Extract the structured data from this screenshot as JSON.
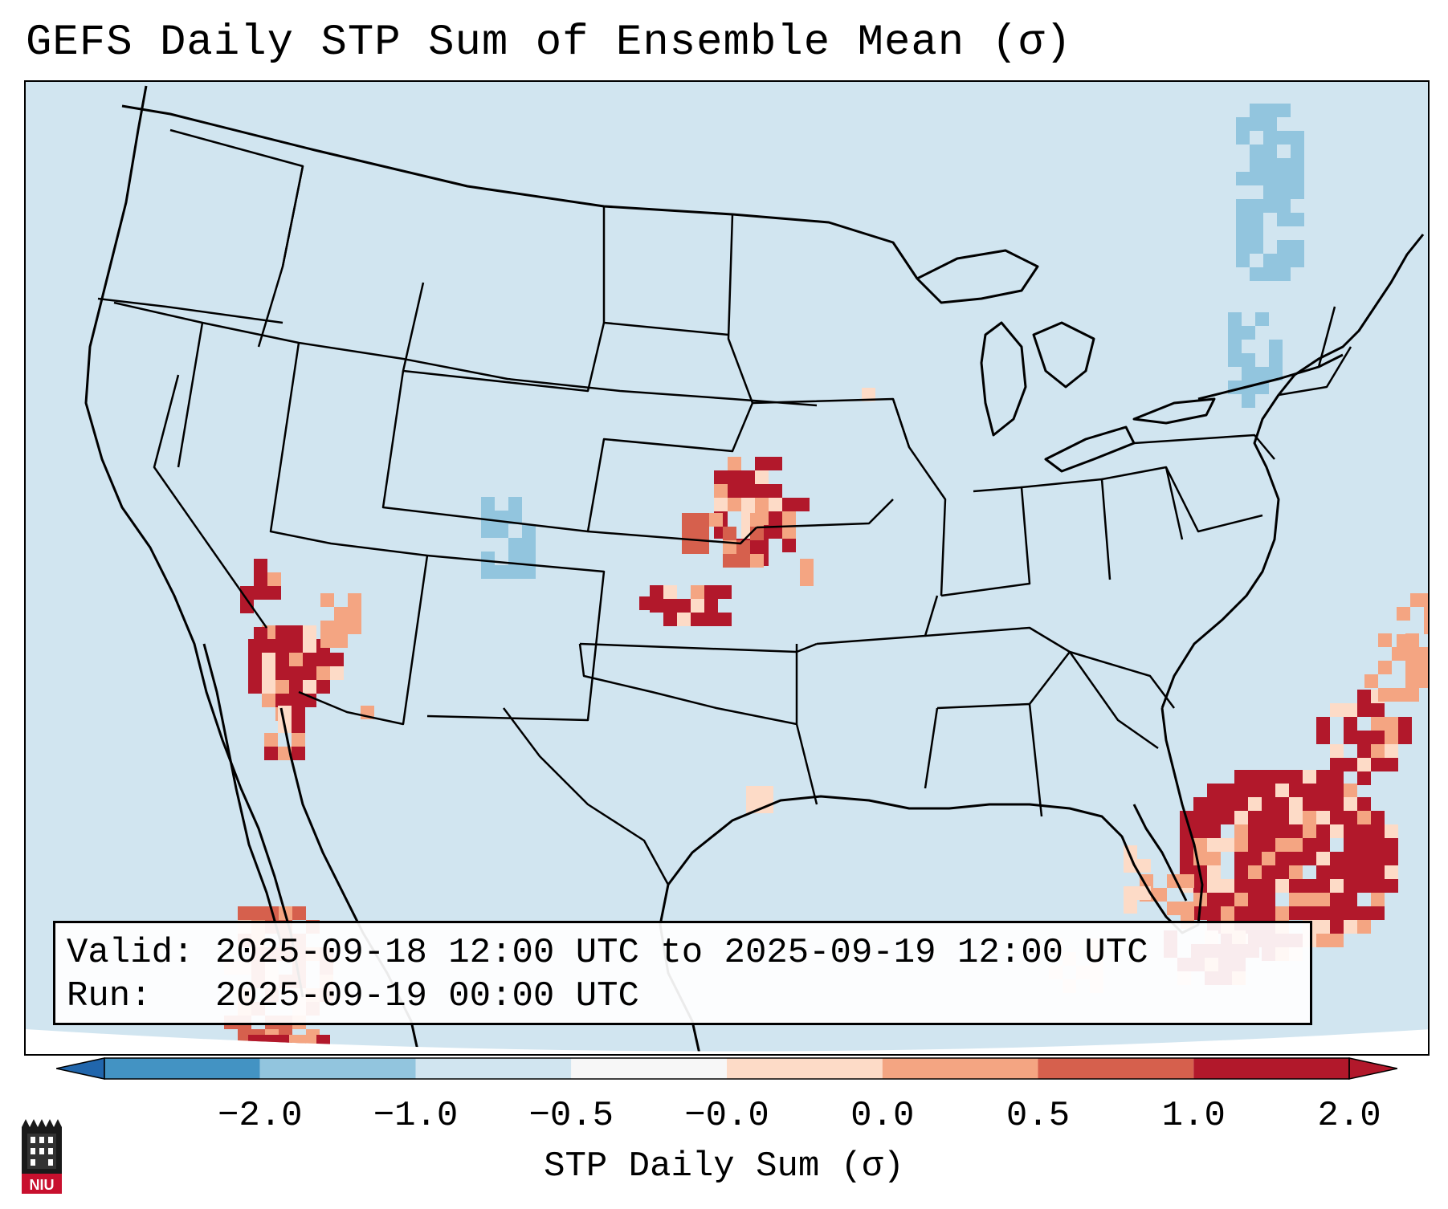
{
  "title": "GEFS Daily STP Sum of Ensemble Mean (σ)",
  "info": {
    "valid_line": "Valid: 2025-09-18 12:00 UTC to 2025-09-19 12:00 UTC",
    "run_line": "Run:   2025-09-19 00:00 UTC"
  },
  "colorbar": {
    "label": "STP Daily Sum (σ)",
    "ticks": [
      "−2.0",
      "−1.0",
      "−0.5",
      "−0.0",
      "0.0",
      "0.5",
      "1.0",
      "2.0"
    ],
    "colors": [
      "#4393c3",
      "#92c5de",
      "#d1e5f0",
      "#f7f7f7",
      "#fddbc7",
      "#f4a582",
      "#d6604d",
      "#b2182b"
    ],
    "extend_min_color": "#2166ac",
    "extend_max_color": "#b2182b"
  },
  "map": {
    "background_color": "#d1e5f0",
    "field_regions": [
      {
        "name": "Southern Plains (KS/OK)",
        "level": "1.0 to 2.0+"
      },
      {
        "name": "Lower Colorado River / Baja California",
        "level": "1.0 to 2.0+"
      },
      {
        "name": "Florida and western Atlantic",
        "level": "1.0 to 2.0+"
      },
      {
        "name": "Central Colorado",
        "level": "-0.5 to -1.0"
      },
      {
        "name": "New England / Quebec",
        "level": "-0.5 to -1.0"
      }
    ]
  },
  "logo": {
    "text": "NIU"
  }
}
